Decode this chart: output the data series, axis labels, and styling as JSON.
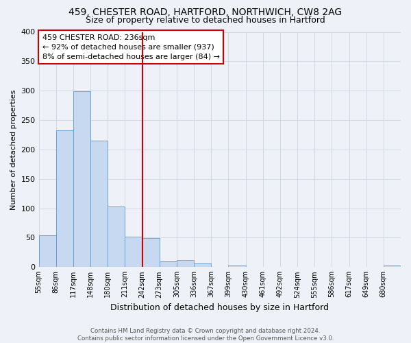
{
  "title1": "459, CHESTER ROAD, HARTFORD, NORTHWICH, CW8 2AG",
  "title2": "Size of property relative to detached houses in Hartford",
  "xlabel": "Distribution of detached houses by size in Hartford",
  "ylabel": "Number of detached properties",
  "bin_labels": [
    "55sqm",
    "86sqm",
    "117sqm",
    "148sqm",
    "180sqm",
    "211sqm",
    "242sqm",
    "273sqm",
    "305sqm",
    "336sqm",
    "367sqm",
    "399sqm",
    "430sqm",
    "461sqm",
    "492sqm",
    "524sqm",
    "555sqm",
    "586sqm",
    "617sqm",
    "649sqm",
    "680sqm"
  ],
  "bar_heights": [
    54,
    233,
    299,
    215,
    103,
    52,
    49,
    10,
    12,
    6,
    0,
    3,
    0,
    0,
    0,
    0,
    0,
    0,
    0,
    0,
    3
  ],
  "bar_color": "#c6d9f0",
  "bar_edge_color": "#5b9bd5",
  "annotation_line1": "459 CHESTER ROAD: 236sqm",
  "annotation_line2": "← 92% of detached houses are smaller (937)",
  "annotation_line3": "8% of semi-detached houses are larger (84) →",
  "annotation_box_color": "#ffffff",
  "annotation_box_edge_color": "#cc0000",
  "vline_x": 6.0,
  "vline_color": "#cc0000",
  "ylim": [
    0,
    400
  ],
  "yticks": [
    0,
    50,
    100,
    150,
    200,
    250,
    300,
    350,
    400
  ],
  "grid_color": "#d0d8e4",
  "bg_color": "#eef2f8",
  "footer1": "Contains HM Land Registry data © Crown copyright and database right 2024.",
  "footer2": "Contains public sector information licensed under the Open Government Licence v3.0."
}
